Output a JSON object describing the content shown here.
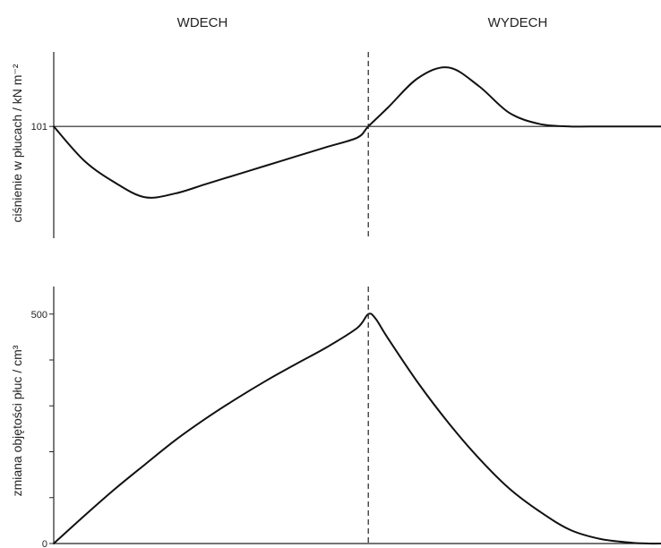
{
  "phases": {
    "inhale": "WDECH",
    "exhale": "WYDECH"
  },
  "chart_data": [
    {
      "type": "line",
      "name": "pressure",
      "ylabel": "ciśnienie w płucach / kN m⁻²",
      "x_range": [
        0,
        1
      ],
      "phase_boundary_x": 0.518,
      "y_range": [
        99.2,
        102.2
      ],
      "reference_value": 101,
      "yticks": [
        101
      ],
      "series": [
        {
          "x": [
            0,
            0.05,
            0.1,
            0.15,
            0.2,
            0.25,
            0.3,
            0.35,
            0.4,
            0.45,
            0.5,
            0.518,
            0.55,
            0.6,
            0.65,
            0.7,
            0.75,
            0.8,
            0.85,
            0.9,
            0.95,
            1
          ],
          "values": [
            101,
            100.45,
            100.1,
            99.86,
            99.92,
            100.07,
            100.22,
            100.37,
            100.52,
            100.67,
            100.82,
            101,
            101.3,
            101.78,
            101.95,
            101.65,
            101.22,
            101.04,
            101,
            101,
            101,
            101
          ]
        }
      ]
    },
    {
      "type": "line",
      "name": "volume",
      "ylabel": "zmiana objętości płuc / cm³",
      "x_range": [
        0,
        1
      ],
      "phase_boundary_x": 0.518,
      "y_range": [
        0,
        560
      ],
      "yticks": [
        0,
        100,
        200,
        300,
        400,
        500
      ],
      "ytick_labels": [
        "0",
        "",
        "",
        "",
        "",
        "500"
      ],
      "series": [
        {
          "x": [
            0,
            0.05,
            0.1,
            0.15,
            0.2,
            0.25,
            0.3,
            0.35,
            0.4,
            0.45,
            0.5,
            0.518,
            0.53,
            0.55,
            0.6,
            0.65,
            0.7,
            0.75,
            0.8,
            0.85,
            0.9,
            0.95,
            0.98,
            1
          ],
          "values": [
            0,
            60,
            118,
            172,
            225,
            272,
            315,
            355,
            392,
            428,
            470,
            500,
            490,
            448,
            350,
            263,
            186,
            120,
            70,
            30,
            10,
            2,
            0,
            0
          ]
        }
      ]
    }
  ]
}
